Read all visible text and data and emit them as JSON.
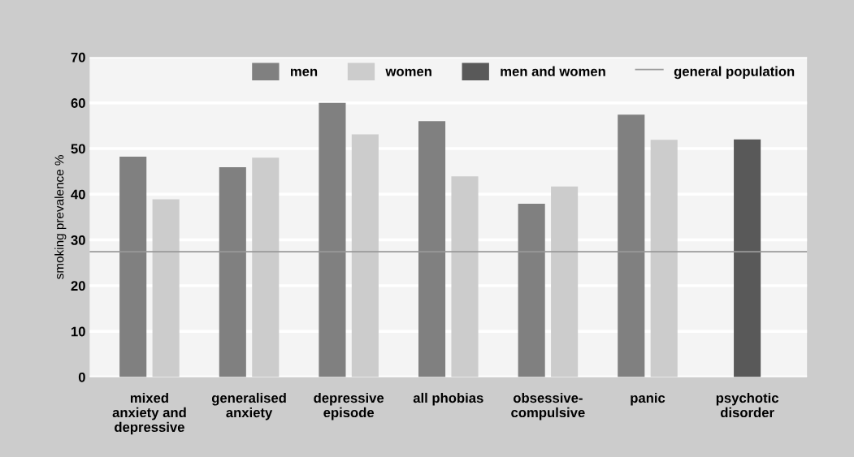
{
  "chart_data": {
    "type": "bar",
    "categories": [
      "mixed\nanxiety and\ndepressive",
      "generalised\nanxiety",
      "depressive\nepisode",
      "all phobias",
      "obsessive-\ncompulsive",
      "panic",
      "psychotic\ndisorder"
    ],
    "series": [
      {
        "name": "men",
        "color": "#808080",
        "values": [
          48.2,
          45.9,
          60,
          56.0,
          37.9,
          57.4,
          null
        ]
      },
      {
        "name": "women",
        "color": "#cccccc",
        "values": [
          38.9,
          48.0,
          53.1,
          43.9,
          41.7,
          51.9,
          null
        ]
      },
      {
        "name": "men and women",
        "color": "#595959",
        "values": [
          null,
          null,
          null,
          null,
          null,
          null,
          52.0
        ]
      }
    ],
    "ylabel": "smoking prevalence %",
    "ylim": [
      0,
      70
    ],
    "yticks": [
      0,
      10,
      20,
      30,
      40,
      50,
      60,
      70
    ],
    "ref_lines": [
      {
        "axis": "y",
        "value": 27.4,
        "label": "general population",
        "color": "#999999"
      }
    ],
    "grid": "y",
    "legend": "top"
  }
}
